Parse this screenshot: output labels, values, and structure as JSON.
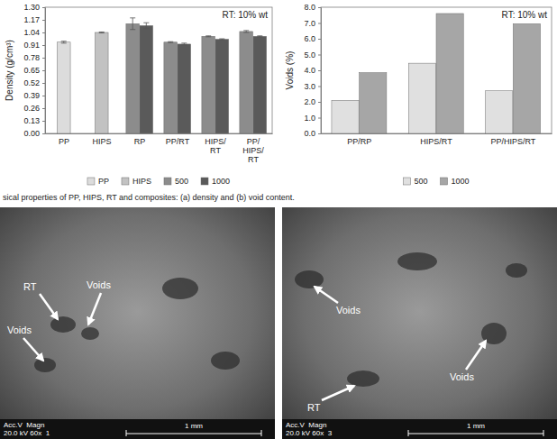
{
  "chart_data": [
    {
      "type": "bar",
      "y_label": "Density (g/cm³)",
      "annotation": "RT: 10% wt",
      "categories": [
        "PP",
        "HIPS",
        "RP",
        "PP/RT",
        "HIPS/RT",
        "PP/HIPS/RT"
      ],
      "series": [
        {
          "name": "PP",
          "color": "#dcdcdc",
          "values": [
            0.94,
            null,
            null,
            null,
            null,
            null
          ],
          "errors": [
            0.01,
            null,
            null,
            null,
            null,
            null
          ]
        },
        {
          "name": "HIPS",
          "color": "#c2c2c2",
          "values": [
            null,
            1.04,
            null,
            null,
            null,
            null
          ],
          "errors": [
            null,
            0.005,
            null,
            null,
            null,
            null
          ]
        },
        {
          "name": "500",
          "color": "#8c8c8c",
          "values": [
            null,
            null,
            1.13,
            0.94,
            1.0,
            1.05
          ],
          "errors": [
            null,
            null,
            0.06,
            0.005,
            0.005,
            0.01
          ]
        },
        {
          "name": "1000",
          "color": "#5a5a5a",
          "values": [
            null,
            null,
            1.11,
            0.92,
            0.97,
            1.0
          ],
          "errors": [
            null,
            null,
            0.03,
            0.01,
            0.005,
            0.005
          ]
        }
      ],
      "ylim": [
        0,
        1.3
      ],
      "yticks": [
        {
          "value": 0,
          "label": "0.00"
        },
        {
          "value": 0.13,
          "label": "0.13"
        },
        {
          "value": 0.26,
          "label": "0.26"
        },
        {
          "value": 0.39,
          "label": "0.39"
        },
        {
          "value": 0.52,
          "label": "0.52"
        },
        {
          "value": 0.65,
          "label": "0.65"
        },
        {
          "value": 0.78,
          "label": "0.78"
        },
        {
          "value": 0.91,
          "label": "0.91"
        },
        {
          "value": 1.04,
          "label": "1.04"
        },
        {
          "value": 1.17,
          "label": "1.17"
        },
        {
          "value": 1.3,
          "label": "1.30"
        }
      ],
      "grid": false,
      "legend": "bottom"
    },
    {
      "type": "bar",
      "y_label": "Voids (%)",
      "annotation": "RT: 10% wt",
      "categories": [
        "PP/RP",
        "HIPS/RT",
        "PP/HIPS/RT"
      ],
      "series": [
        {
          "name": "500",
          "color": "#e0e0e0",
          "values": [
            2.1,
            4.45,
            2.7
          ]
        },
        {
          "name": "1000",
          "color": "#a6a6a6",
          "values": [
            3.85,
            7.6,
            6.95
          ]
        }
      ],
      "ylim": [
        0,
        8
      ],
      "yticks": [
        {
          "value": 0,
          "label": "0.0"
        },
        {
          "value": 1,
          "label": "1.0"
        },
        {
          "value": 2,
          "label": "2.0"
        },
        {
          "value": 3,
          "label": "3.0"
        },
        {
          "value": 4,
          "label": "4.0"
        },
        {
          "value": 5,
          "label": "5.0"
        },
        {
          "value": 6,
          "label": "6.0"
        },
        {
          "value": 7,
          "label": "7.0"
        },
        {
          "value": 8,
          "label": "8.0"
        }
      ],
      "grid": false,
      "legend": "bottom"
    }
  ],
  "caption": "sical properties of PP, HIPS, RT and composites: (a) density and (b) void content.",
  "micrographs": [
    {
      "labels": [
        "RT",
        "Voids",
        "Voids"
      ],
      "info": [
        "Acc.V  Magn",
        "20.0 kV 60x  1"
      ],
      "scale_bar": "1 mm"
    },
    {
      "labels": [
        "Voids",
        "Voids",
        "RT"
      ],
      "info": [
        "Acc.V  Magn",
        "20.0 kV 60x  3"
      ],
      "scale_bar": "1 mm"
    }
  ]
}
